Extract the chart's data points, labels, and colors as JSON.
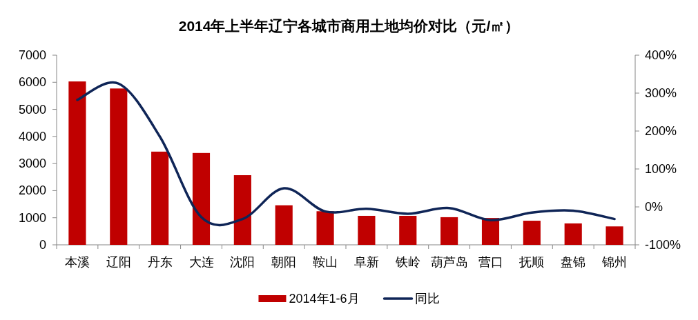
{
  "chart_data": {
    "type": "bar",
    "title": "2014年上半年辽宁各城市商用土地均价对比（元/㎡）",
    "categories": [
      "本溪",
      "辽阳",
      "丹东",
      "大连",
      "沈阳",
      "朝阳",
      "鞍山",
      "阜新",
      "铁岭",
      "葫芦岛",
      "营口",
      "抚顺",
      "盘锦",
      "锦州"
    ],
    "series": [
      {
        "name": "2014年1-6月",
        "color": "#c00000",
        "values": [
          6030,
          5770,
          3440,
          3390,
          2570,
          1460,
          1240,
          1070,
          1070,
          1020,
          990,
          890,
          790,
          680
        ]
      },
      {
        "name": "同比",
        "type": "line",
        "axis": "y2",
        "color": "#0f2557",
        "values": [
          282,
          325,
          185,
          -27,
          -32,
          49,
          -12,
          -5,
          -18,
          -3,
          -35,
          -15,
          -10,
          -32
        ]
      }
    ],
    "ylim": [
      0,
      7000
    ],
    "yticks": [
      0,
      1000,
      2000,
      3000,
      4000,
      5000,
      6000,
      7000
    ],
    "y2lim": [
      -100,
      400
    ],
    "y2ticks": [
      {
        "value": -100,
        "label": "-100%"
      },
      {
        "value": 0,
        "label": "0%"
      },
      {
        "value": 100,
        "label": "100%"
      },
      {
        "value": 200,
        "label": "200%"
      },
      {
        "value": 300,
        "label": "300%"
      },
      {
        "value": 400,
        "label": "400%"
      }
    ],
    "legend": "bottom"
  }
}
